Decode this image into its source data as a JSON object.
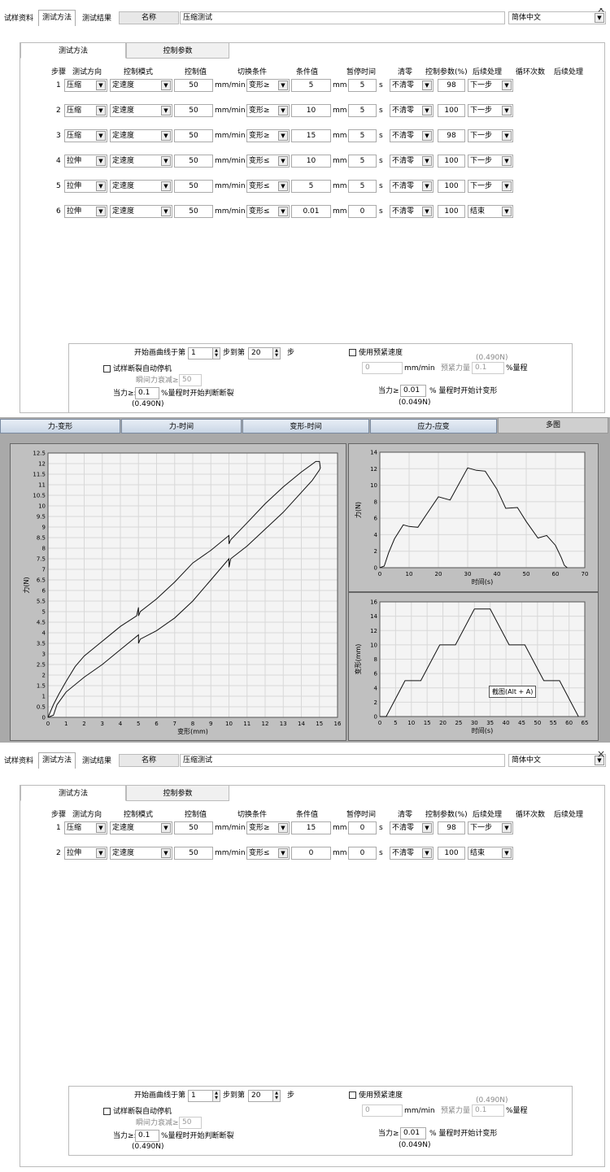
{
  "top_tabs": [
    "试样资料",
    "测试方法",
    "测试结果"
  ],
  "name_label": "名称",
  "name_value": "压缩测试",
  "language": "简体中文",
  "inner_tabs": [
    "测试方法",
    "控制参数"
  ],
  "headers": [
    "步骤",
    "测试方向",
    "控制模式",
    "控制值",
    "切换条件",
    "条件值",
    "暂停时间",
    "清零",
    "控制参数(%)",
    "后续处理",
    "循环次数",
    "后续处理"
  ],
  "units": {
    "speed": "mm/min",
    "dist": "mm",
    "time": "s"
  },
  "steps_1": [
    {
      "n": "1",
      "dir": "压缩",
      "mode": "定速度",
      "val": "50",
      "cond": "变形≥",
      "cval": "5",
      "pause": "5",
      "zero": "不清零",
      "param": "98",
      "next": "下一步"
    },
    {
      "n": "2",
      "dir": "压缩",
      "mode": "定速度",
      "val": "50",
      "cond": "变形≥",
      "cval": "10",
      "pause": "5",
      "zero": "不清零",
      "param": "100",
      "next": "下一步"
    },
    {
      "n": "3",
      "dir": "压缩",
      "mode": "定速度",
      "val": "50",
      "cond": "变形≥",
      "cval": "15",
      "pause": "5",
      "zero": "不清零",
      "param": "98",
      "next": "下一步"
    },
    {
      "n": "4",
      "dir": "拉伸",
      "mode": "定速度",
      "val": "50",
      "cond": "变形≤",
      "cval": "10",
      "pause": "5",
      "zero": "不清零",
      "param": "100",
      "next": "下一步"
    },
    {
      "n": "5",
      "dir": "拉伸",
      "mode": "定速度",
      "val": "50",
      "cond": "变形≤",
      "cval": "5",
      "pause": "5",
      "zero": "不清零",
      "param": "100",
      "next": "下一步"
    },
    {
      "n": "6",
      "dir": "拉伸",
      "mode": "定速度",
      "val": "50",
      "cond": "变形≤",
      "cval": "0.01",
      "pause": "0",
      "zero": "不清零",
      "param": "100",
      "next": "结束"
    }
  ],
  "steps_2": [
    {
      "n": "1",
      "dir": "压缩",
      "mode": "定速度",
      "val": "50",
      "cond": "变形≥",
      "cval": "15",
      "pause": "0",
      "zero": "不清零",
      "param": "98",
      "next": "下一步"
    },
    {
      "n": "2",
      "dir": "拉伸",
      "mode": "定速度",
      "val": "50",
      "cond": "变形≤",
      "cval": "0",
      "pause": "0",
      "zero": "不清零",
      "param": "100",
      "next": "结束"
    }
  ],
  "bottom": {
    "start_curve_label": "开始画曲线于第",
    "start_step": "1",
    "to_label": "步到第",
    "end_step": "20",
    "step_label": "步",
    "preload_check": "使用预紧速度",
    "preload_force_n": "(0.490N)",
    "preload_speed": "0",
    "preload_speed_unit": "mm/min",
    "preload_force_label": "预紧力量",
    "preload_force": "0.1",
    "preload_force_unit": "%量程",
    "auto_stop_check": "试样断裂自动停机",
    "decay_label": "瞬间力衰减≥:",
    "decay_value": "50",
    "break_label": "当力≥:",
    "break_value": "0.1",
    "break_suffix": "%量程时开始判断断裂",
    "break_n": "(0.490N)",
    "deform_label": "当力≥",
    "deform_value": "0.01",
    "deform_suffix": "% 量程时开始计变形",
    "deform_n": "(0.049N)"
  },
  "chart_tabs": [
    "力-变形",
    "力-时间",
    "变形-时间",
    "应力-应变",
    "多图"
  ],
  "tooltip": "截图(Alt + A)",
  "chart_data": [
    {
      "type": "line",
      "xlabel": "变形(mm)",
      "ylabel": "力(N)",
      "xlim": [
        0,
        16
      ],
      "ylim": [
        0,
        12.5
      ],
      "xticks": [
        0,
        1,
        2,
        3,
        4,
        5,
        6,
        7,
        8,
        9,
        10,
        11,
        12,
        13,
        14,
        15,
        16
      ],
      "yticks": [
        0,
        0.5,
        1,
        1.5,
        2,
        2.5,
        3,
        3.5,
        4,
        4.5,
        5,
        5.5,
        6,
        6.5,
        7,
        7.5,
        8,
        8.5,
        9,
        9.5,
        10,
        10.5,
        11,
        11.5,
        12,
        12.5
      ],
      "grid": true,
      "x": [
        0,
        0.3,
        0.6,
        1,
        1.5,
        2,
        3,
        4,
        4.9,
        5,
        5,
        5.1,
        6,
        7,
        8,
        9,
        10,
        10,
        10.1,
        11,
        12,
        13,
        14,
        14.8,
        15,
        15.05,
        15,
        14.6,
        13,
        12,
        11,
        10.1,
        10,
        10,
        9,
        8,
        7,
        6,
        5.1,
        5,
        5,
        4,
        3,
        2,
        1,
        0.5,
        0.3,
        0
      ],
      "y": [
        0,
        0.6,
        1.1,
        1.7,
        2.4,
        2.9,
        3.6,
        4.3,
        4.8,
        5.2,
        4.8,
        5.0,
        5.6,
        6.4,
        7.3,
        7.9,
        8.6,
        8.2,
        8.4,
        9.2,
        10.1,
        10.9,
        11.6,
        12.1,
        12.1,
        11.8,
        11.7,
        11.2,
        9.7,
        8.9,
        8.1,
        7.5,
        7.1,
        7.5,
        6.5,
        5.5,
        4.7,
        4.1,
        3.7,
        3.5,
        3.9,
        3.2,
        2.5,
        1.9,
        1.2,
        0.6,
        0.1,
        0
      ]
    },
    {
      "type": "line",
      "xlabel": "时间(s)",
      "ylabel": "力(N)",
      "xlim": [
        0,
        70
      ],
      "ylim": [
        0,
        14
      ],
      "xticks": [
        0,
        10,
        20,
        30,
        40,
        50,
        60,
        70
      ],
      "yticks": [
        0,
        2,
        4,
        6,
        8,
        10,
        12,
        14
      ],
      "grid": true,
      "x": [
        0,
        1.5,
        3,
        5,
        8,
        10,
        13,
        16,
        20,
        24,
        30,
        33,
        36,
        40,
        43,
        47,
        50,
        54,
        57,
        60,
        62,
        63,
        64
      ],
      "y": [
        0,
        0.2,
        1.8,
        3.5,
        5.2,
        5,
        4.9,
        6.5,
        8.6,
        8.2,
        12.1,
        11.8,
        11.7,
        9.5,
        7.2,
        7.3,
        5.6,
        3.6,
        3.9,
        2.7,
        1.2,
        0.3,
        0
      ]
    },
    {
      "type": "line",
      "xlabel": "时间(s)",
      "ylabel": "变形(mm)",
      "xlim": [
        0,
        65
      ],
      "ylim": [
        0,
        16
      ],
      "xticks": [
        0,
        5,
        10,
        15,
        20,
        25,
        30,
        35,
        40,
        45,
        50,
        55,
        60,
        65
      ],
      "yticks": [
        0,
        2,
        4,
        6,
        8,
        10,
        12,
        14,
        16
      ],
      "grid": true,
      "x": [
        0,
        2,
        8,
        13,
        19,
        24,
        30,
        35,
        41,
        46,
        52,
        57,
        63
      ],
      "y": [
        0,
        0,
        5,
        5,
        10,
        10,
        15,
        15,
        10,
        10,
        5,
        5,
        0
      ]
    }
  ]
}
